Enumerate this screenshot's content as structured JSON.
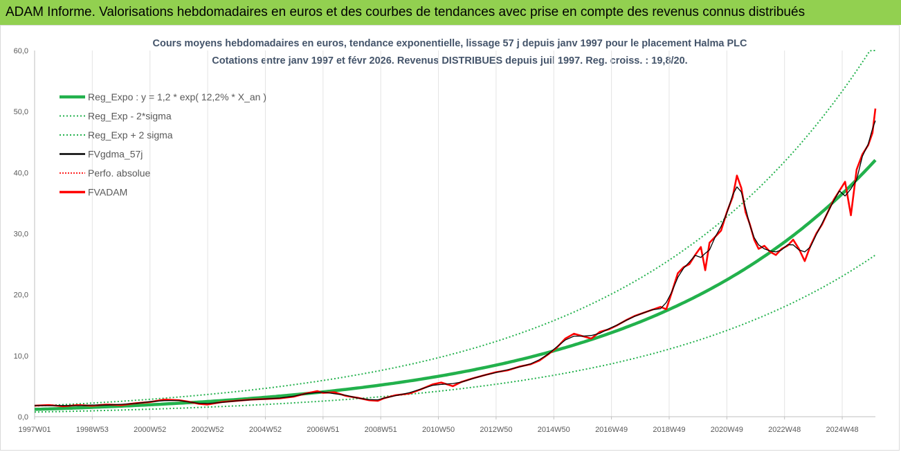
{
  "banner": {
    "title": "ADAM Informe. Valorisations hebdomadaires en euros et des courbes de tendances avec prise en compte des revenus connus distribués"
  },
  "colors": {
    "banner_bg": "#92d050",
    "reg_expo": "#22b14c",
    "sigma": "#22b14c",
    "fvgdma": "#000000",
    "perfo": "#ff0000",
    "fvadam": "#ff0000"
  },
  "chart_data": {
    "type": "line",
    "title_line1": "Cours moyens hebdomadaires en euros, tendance exponentielle, lissage 57 j depuis janv 1997 pour le placement Halma PLC",
    "title_line2": "Cotations entre janv 1997 et févr 2026. Revenus DISTRIBUES depuis juil 1997. Reg. croiss. : 19,8/20.",
    "ylim": [
      0,
      60
    ],
    "y_ticks": [
      "0,0",
      "10,0",
      "20,0",
      "30,0",
      "40,0",
      "50,0",
      "60,0"
    ],
    "x_range_years": [
      1997.0,
      2026.15
    ],
    "x_ticks": [
      {
        "label": "1997W01",
        "t": 1997.0
      },
      {
        "label": "1998W53",
        "t": 1999.0
      },
      {
        "label": "2000W52",
        "t": 2001.0
      },
      {
        "label": "2002W52",
        "t": 2003.0
      },
      {
        "label": "2004W52",
        "t": 2005.0
      },
      {
        "label": "2006W51",
        "t": 2007.0
      },
      {
        "label": "2008W51",
        "t": 2009.0
      },
      {
        "label": "2010W50",
        "t": 2011.0
      },
      {
        "label": "2012W50",
        "t": 2013.0
      },
      {
        "label": "2014W50",
        "t": 2015.0
      },
      {
        "label": "2016W49",
        "t": 2017.0
      },
      {
        "label": "2018W49",
        "t": 2019.0
      },
      {
        "label": "2020W49",
        "t": 2021.0
      },
      {
        "label": "2022W48",
        "t": 2023.0
      },
      {
        "label": "2024W48",
        "t": 2025.0
      }
    ],
    "regression": {
      "a": 1.2,
      "rate": 0.122,
      "t0": 1997.0,
      "sigma_factor": 0.63,
      "upper_factor": 1.46,
      "cap": 60
    },
    "legend": [
      {
        "key": "reg_expo",
        "label": "Reg_Expo : y = 1,2 * exp( 12,2% *  X_an )",
        "style": "thick"
      },
      {
        "key": "sigma_low",
        "label": "Reg_Exp - 2*sigma",
        "style": "dotted-green"
      },
      {
        "key": "sigma_high",
        "label": "Reg_Exp + 2 sigma",
        "style": "dotted-green"
      },
      {
        "key": "fvgdma",
        "label": "FVgdma_57j",
        "style": "black"
      },
      {
        "key": "perfo",
        "label": "Perfo. absolue",
        "style": "dotted-red"
      },
      {
        "key": "fvadam",
        "label": "FVADAM",
        "style": "thick-red"
      }
    ],
    "series_fvadam": {
      "name": "FVADAM",
      "t": [
        1997.0,
        1997.5,
        1998.0,
        1998.5,
        1999.0,
        1999.5,
        2000.0,
        2000.5,
        2001.0,
        2001.5,
        2002.0,
        2002.3,
        2002.7,
        2003.0,
        2003.5,
        2004.0,
        2004.5,
        2005.0,
        2005.5,
        2006.0,
        2006.4,
        2006.8,
        2007.0,
        2007.4,
        2007.8,
        2008.2,
        2008.6,
        2008.9,
        2009.1,
        2009.5,
        2010.0,
        2010.4,
        2010.8,
        2011.1,
        2011.5,
        2011.8,
        2012.2,
        2012.6,
        2013.0,
        2013.4,
        2013.8,
        2014.2,
        2014.5,
        2014.8,
        2015.1,
        2015.4,
        2015.7,
        2016.0,
        2016.3,
        2016.6,
        2016.9,
        2017.2,
        2017.5,
        2017.8,
        2018.1,
        2018.4,
        2018.7,
        2018.9,
        2019.1,
        2019.3,
        2019.5,
        2019.7,
        2019.9,
        2020.1,
        2020.25,
        2020.4,
        2020.6,
        2020.8,
        2021.0,
        2021.2,
        2021.35,
        2021.5,
        2021.65,
        2021.8,
        2021.95,
        2022.1,
        2022.3,
        2022.5,
        2022.7,
        2022.9,
        2023.1,
        2023.3,
        2023.5,
        2023.7,
        2023.9,
        2024.1,
        2024.3,
        2024.5,
        2024.7,
        2024.9,
        2025.1,
        2025.3,
        2025.5,
        2025.7,
        2025.9,
        2026.05,
        2026.15
      ],
      "values": [
        1.8,
        1.9,
        1.7,
        1.9,
        1.8,
        2.0,
        1.9,
        2.2,
        2.4,
        2.8,
        2.7,
        2.5,
        2.1,
        2.0,
        2.4,
        2.6,
        2.8,
        2.9,
        3.0,
        3.3,
        3.8,
        4.2,
        3.9,
        4.0,
        3.4,
        3.1,
        2.7,
        2.6,
        3.0,
        3.5,
        3.8,
        4.5,
        5.3,
        5.6,
        5.0,
        5.7,
        6.3,
        6.8,
        7.3,
        7.6,
        8.2,
        8.6,
        9.2,
        10.2,
        11.3,
        12.8,
        13.6,
        13.2,
        12.8,
        13.9,
        14.3,
        15.0,
        15.8,
        16.5,
        17.0,
        17.5,
        18.0,
        17.6,
        20.5,
        23.5,
        24.5,
        25.0,
        26.5,
        27.8,
        24.0,
        28.5,
        29.5,
        30.5,
        33.5,
        36.0,
        39.5,
        37.5,
        33.5,
        31.5,
        29.0,
        27.5,
        28.0,
        27.0,
        26.5,
        27.5,
        28.0,
        29.0,
        27.5,
        25.5,
        28.0,
        30.0,
        31.5,
        33.5,
        35.5,
        37.0,
        38.5,
        33.0,
        40.5,
        43.0,
        44.5,
        46.5,
        50.5
      ]
    }
  }
}
